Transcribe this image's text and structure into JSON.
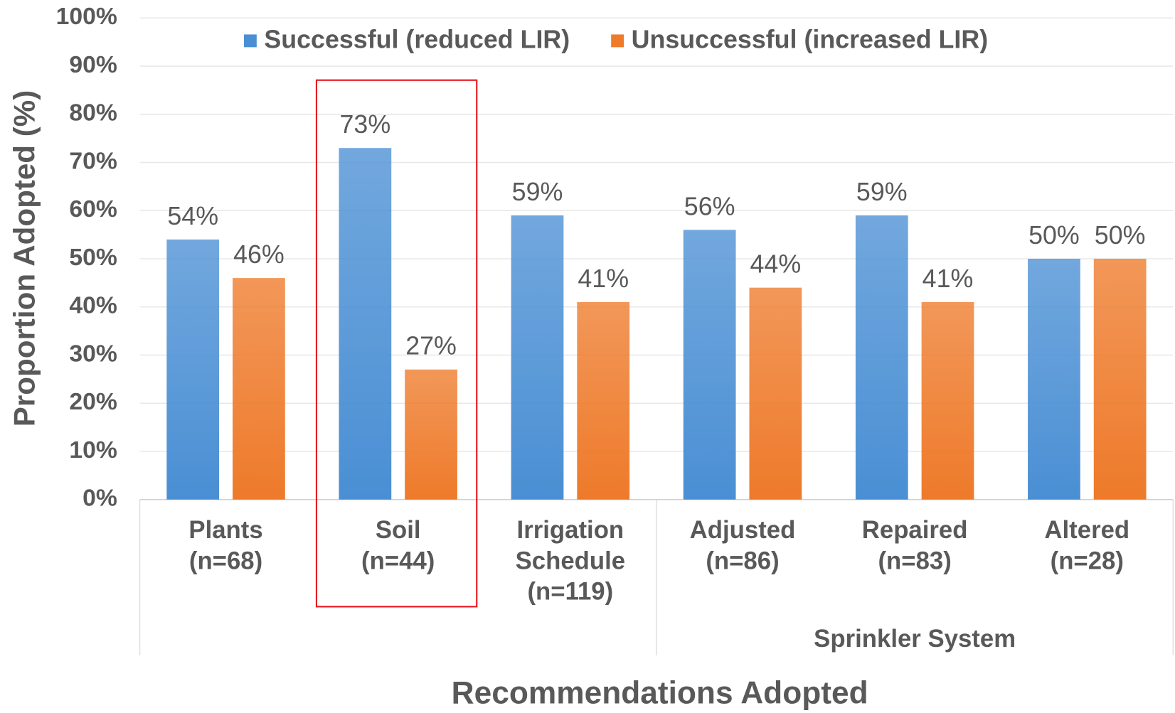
{
  "chart_data": {
    "type": "bar",
    "x_label": "Recommendations Adopted",
    "y_label": "Proportion Adopted (%)",
    "categories": [
      [
        "Plants",
        "(n=68)"
      ],
      [
        "Soil",
        "(n=44)"
      ],
      [
        "Irrigation",
        "Schedule",
        "(n=119)"
      ],
      [
        "Adjusted",
        "(n=86)"
      ],
      [
        "Repaired",
        "(n=83)"
      ],
      [
        "Altered",
        "(n=28)"
      ]
    ],
    "category_group": {
      "label": "Sprinkler System",
      "from": 3,
      "to": 5
    },
    "highlight": 1,
    "series": [
      {
        "name": "Successful (reduced LIR)",
        "color": "#4a8fd4",
        "values": [
          54,
          73,
          59,
          56,
          59,
          50
        ],
        "value_labels": [
          "54%",
          "73%",
          "59%",
          "56%",
          "59%",
          "50%"
        ]
      },
      {
        "name": "Unsuccessful (increased LIR)",
        "color": "#ee7a2a",
        "values": [
          46,
          27,
          41,
          44,
          41,
          50
        ],
        "value_labels": [
          "46%",
          "27%",
          "41%",
          "44%",
          "41%",
          "50%"
        ]
      }
    ],
    "ylim": [
      0,
      100
    ],
    "yticks": [
      {
        "value": 0,
        "label": "0%"
      },
      {
        "value": 10,
        "label": "10%"
      },
      {
        "value": 20,
        "label": "20%"
      },
      {
        "value": 30,
        "label": "30%"
      },
      {
        "value": 40,
        "label": "40%"
      },
      {
        "value": 50,
        "label": "50%"
      },
      {
        "value": 60,
        "label": "60%"
      },
      {
        "value": 70,
        "label": "70%"
      },
      {
        "value": 80,
        "label": "80%"
      },
      {
        "value": 90,
        "label": "90%"
      },
      {
        "value": 100,
        "label": "100%"
      }
    ],
    "grid": true
  }
}
